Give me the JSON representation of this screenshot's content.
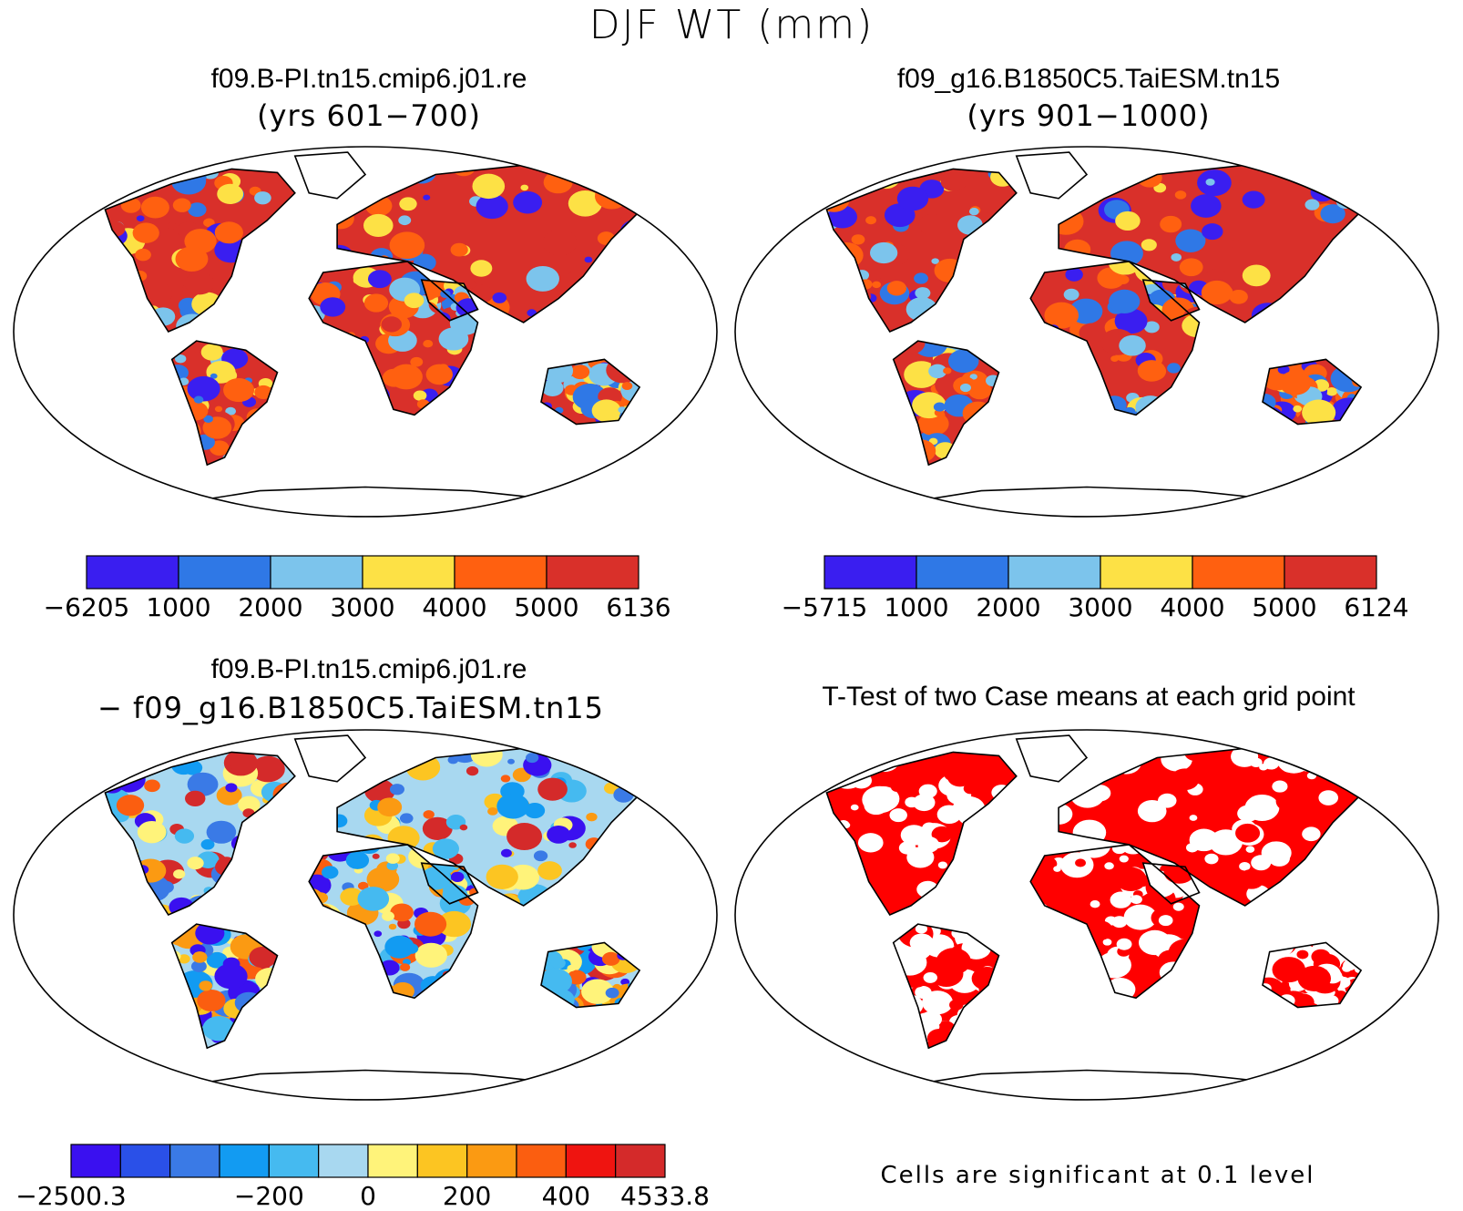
{
  "figure": {
    "title": "DJF WT (mm)"
  },
  "panels": [
    {
      "title": "f09.B-PI.tn15.cmip6.j01.re",
      "subtitle": "(yrs 601−700)",
      "colorbar": {
        "colors": [
          "#3a1ef0",
          "#2f78e6",
          "#7cc4ec",
          "#fde145",
          "#ff6010",
          "#d9302a"
        ],
        "labels": [
          "−6205",
          "1000",
          "2000",
          "3000",
          "4000",
          "5000",
          "6136"
        ]
      }
    },
    {
      "title": "f09_g16.B1850C5.TaiESM.tn15",
      "subtitle": "(yrs 901−1000)",
      "colorbar": {
        "colors": [
          "#3a1ef0",
          "#2f78e6",
          "#7cc4ec",
          "#fde145",
          "#ff6010",
          "#d9302a"
        ],
        "labels": [
          "−5715",
          "1000",
          "2000",
          "3000",
          "4000",
          "5000",
          "6124"
        ]
      }
    },
    {
      "title": "f09.B-PI.tn15.cmip6.j01.re",
      "subtitle": "− f09_g16.B1850C5.TaiESM.tn15",
      "colorbar": {
        "colors": [
          "#3a10f0",
          "#2a50e8",
          "#3a7ae6",
          "#129bf2",
          "#45baf0",
          "#a8d8f0",
          "#fff37a",
          "#fcc522",
          "#fb9a12",
          "#fb5e10",
          "#ef1410",
          "#d42a2a"
        ],
        "labels": [
          "−2500.3",
          "−200",
          "0",
          "200",
          "400",
          "4533.8"
        ]
      }
    },
    {
      "title": "T-Test of two Case means at each grid point",
      "footnote": "Cells are significant at 0.1 level",
      "fill_color": "#ff0000"
    }
  ]
}
